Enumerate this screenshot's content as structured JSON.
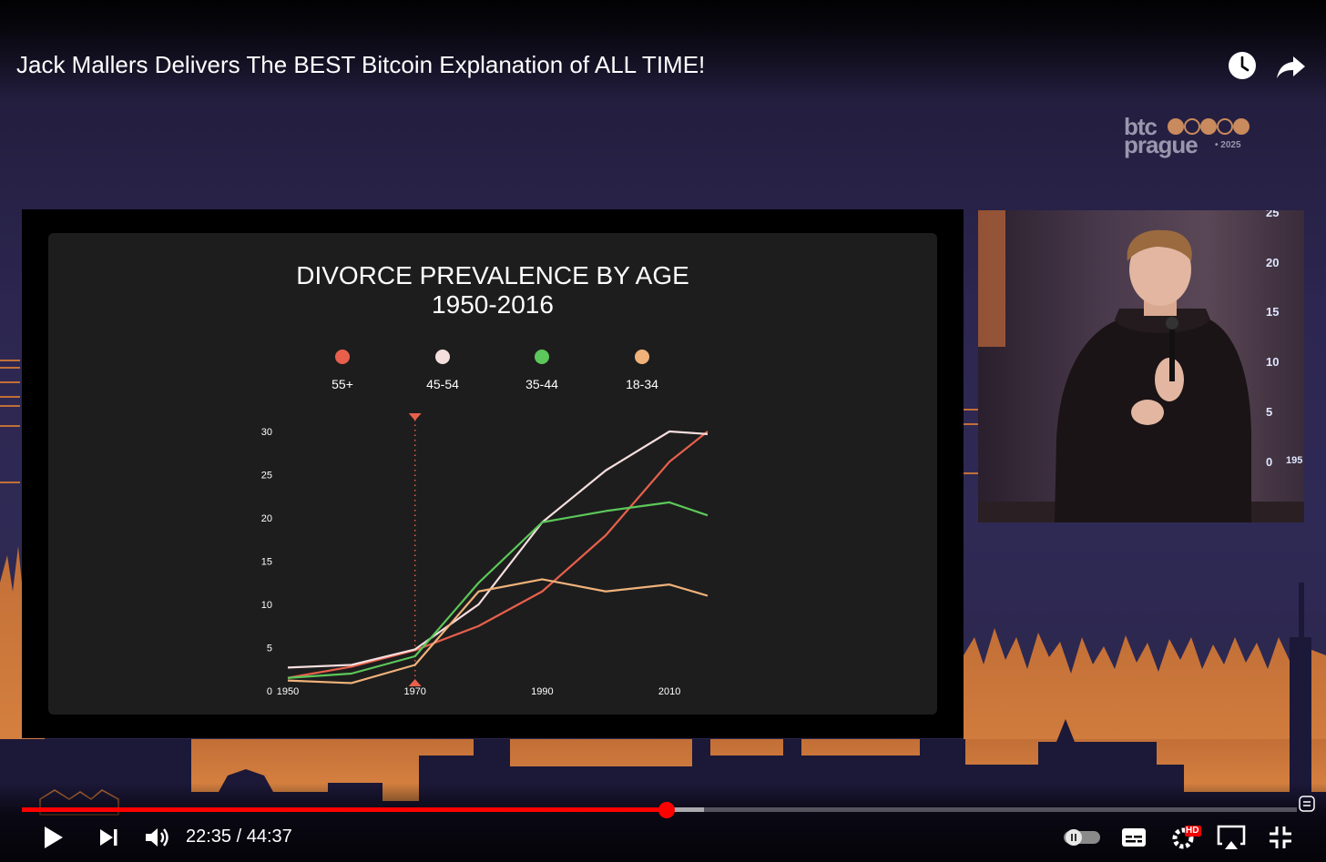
{
  "video": {
    "title": "Jack Mallers Delivers The BEST Bitcoin Explanation of ALL TIME!",
    "current_time": "22:35",
    "separator": " / ",
    "duration": "44:37",
    "progress_fraction": 0.5055,
    "buffered_fraction": 0.535
  },
  "icons": {
    "watch_later": "clock-icon",
    "share": "share-arrow-icon",
    "play": "play-icon",
    "next": "skip-next-icon",
    "volume": "volume-icon",
    "autoplay": "autoplay-toggle-icon",
    "subtitles": "subtitles-icon",
    "settings": "gear-icon",
    "miniplayer": "airplay-icon",
    "fullscreen": "exit-fullscreen-icon",
    "hd_badge": "HD"
  },
  "logo": {
    "line1": "btc",
    "line2": "prague",
    "year": "• 2025",
    "dot_color": "#c98a5d"
  },
  "camera_ticks": [
    "25",
    "20",
    "15",
    "10",
    "5",
    "0"
  ],
  "camera_tick_suffix": "195",
  "colors": {
    "accent": "#ff0000",
    "series_55": "#e8604c",
    "series_45": "#f5dede",
    "series_35": "#5cc75a",
    "series_18": "#f0b27a"
  },
  "chart_data": {
    "type": "line",
    "title": "DIVORCE PREVALENCE BY AGE",
    "subtitle": "1950-2016",
    "xlim": [
      1950,
      2016
    ],
    "ylim": [
      0,
      30
    ],
    "x_ticks": [
      1950,
      1970,
      1990,
      2010
    ],
    "y_ticks": [
      0,
      5,
      10,
      15,
      20,
      25,
      30
    ],
    "marker_x": 1970,
    "x": [
      1950,
      1960,
      1970,
      1980,
      1990,
      2000,
      2010,
      2016
    ],
    "series": [
      {
        "name": "55+",
        "color": "#e8604c",
        "values": [
          1.5,
          2.8,
          4.7,
          7.5,
          11.5,
          18,
          26.5,
          30
        ]
      },
      {
        "name": "45-54",
        "color": "#f5dede",
        "values": [
          2.7,
          3.0,
          4.8,
          10,
          19.5,
          25.5,
          30,
          29.7
        ]
      },
      {
        "name": "35-44",
        "color": "#5cc75a",
        "values": [
          1.5,
          2.0,
          4.0,
          12.5,
          19.5,
          20.8,
          21.8,
          20.3
        ]
      },
      {
        "name": "18-34",
        "color": "#f0b27a",
        "values": [
          1.2,
          0.9,
          3.0,
          11.5,
          12.9,
          11.5,
          12.3,
          11.0
        ]
      }
    ]
  }
}
